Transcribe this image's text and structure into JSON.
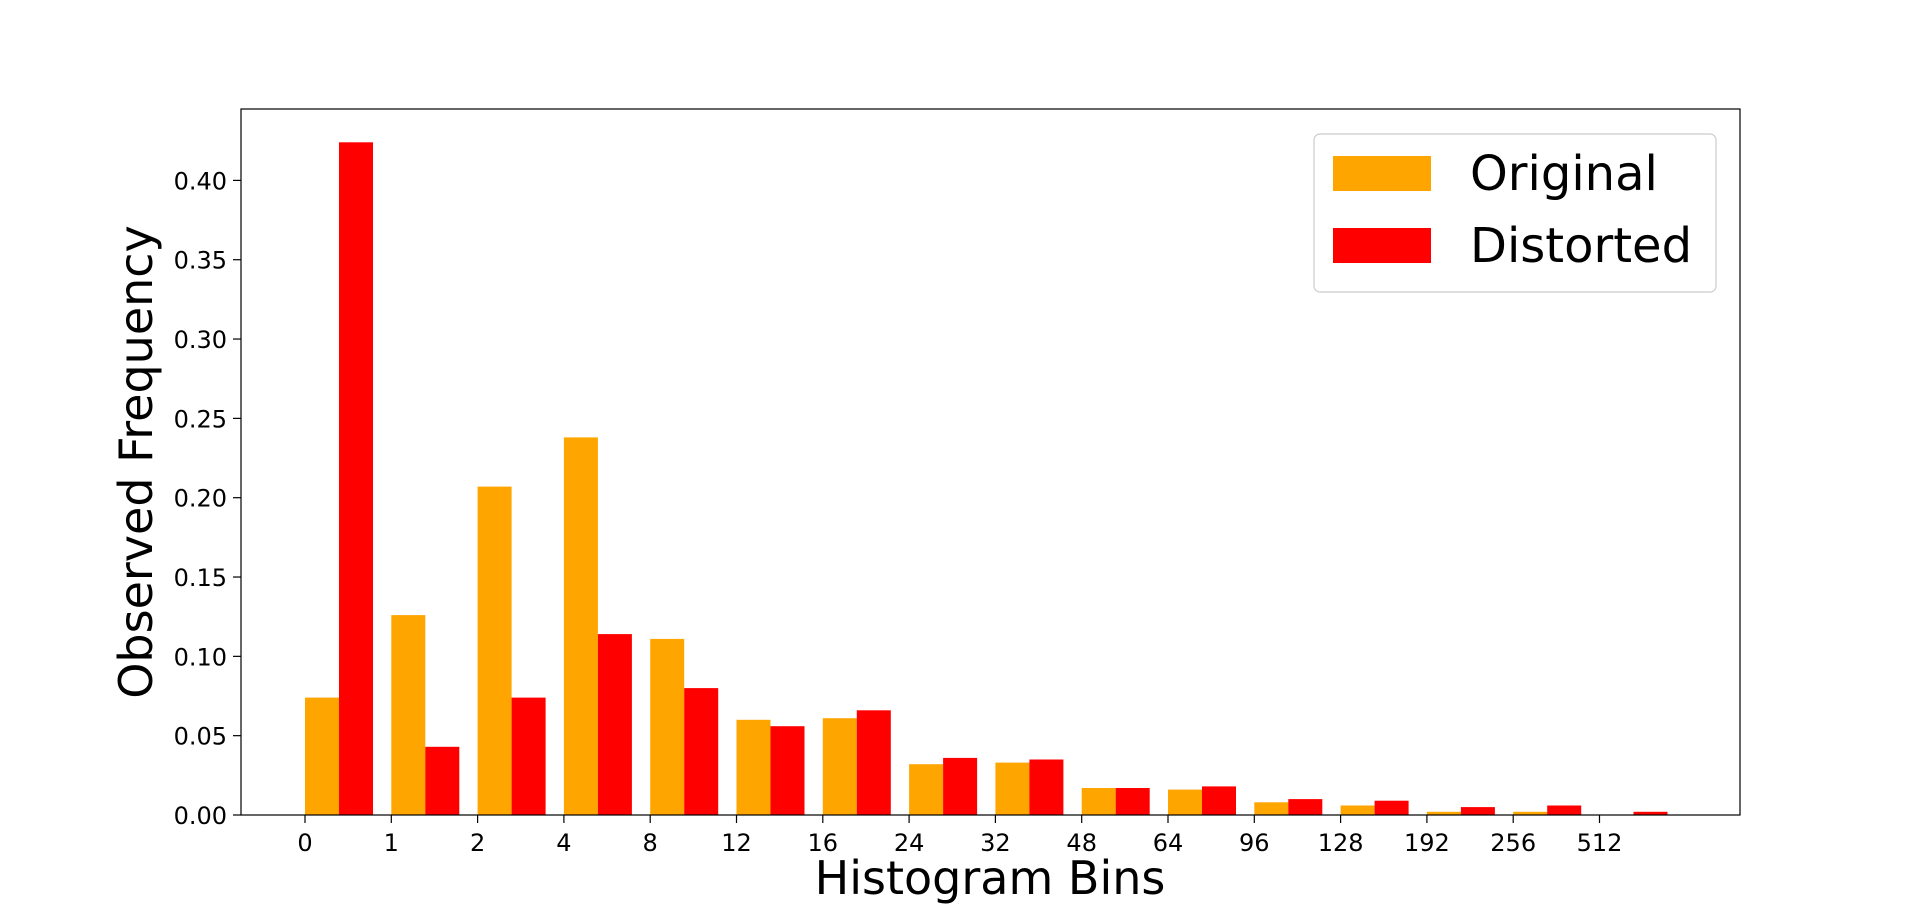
{
  "chart_data": {
    "type": "bar",
    "title": "",
    "xlabel": "Histogram Bins",
    "ylabel": "Observed Frequency",
    "categories": [
      "0",
      "1",
      "2",
      "4",
      "8",
      "12",
      "16",
      "24",
      "32",
      "48",
      "64",
      "96",
      "128",
      "192",
      "256",
      "512"
    ],
    "ylim": [
      0,
      0.445
    ],
    "yticks": [
      "0.00",
      "0.05",
      "0.10",
      "0.15",
      "0.20",
      "0.25",
      "0.30",
      "0.35",
      "0.40"
    ],
    "ytick_values": [
      0,
      0.05,
      0.1,
      0.15,
      0.2,
      0.25,
      0.3,
      0.35,
      0.4
    ],
    "grid": false,
    "legend_position": "top-right",
    "series": [
      {
        "name": "Original",
        "color": "#ffa500",
        "values": [
          0.074,
          0.126,
          0.207,
          0.238,
          0.111,
          0.06,
          0.061,
          0.032,
          0.033,
          0.017,
          0.016,
          0.008,
          0.006,
          0.002,
          0.002,
          0.0
        ]
      },
      {
        "name": "Distorted",
        "color": "#ff0000",
        "values": [
          0.424,
          0.043,
          0.074,
          0.114,
          0.08,
          0.056,
          0.066,
          0.036,
          0.035,
          0.017,
          0.018,
          0.01,
          0.009,
          0.005,
          0.006,
          0.002
        ]
      }
    ]
  }
}
